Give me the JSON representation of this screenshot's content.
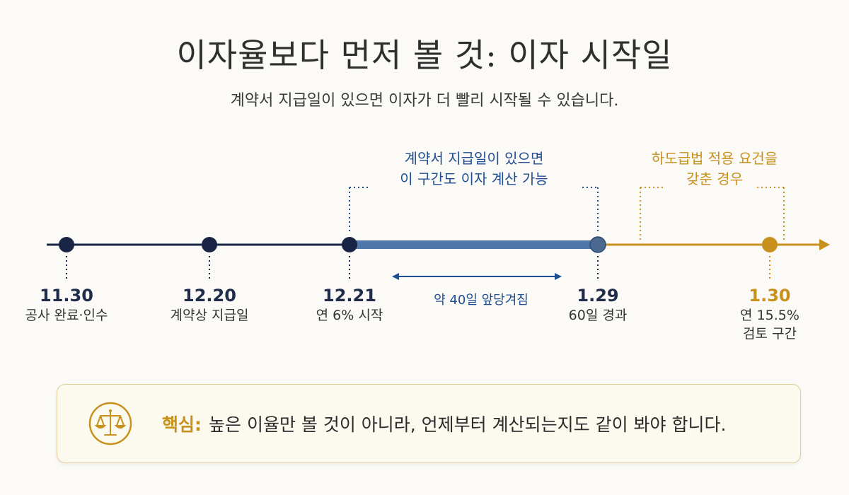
{
  "title": "이자율보다 먼저 볼 것: 이자 시작일",
  "subtitle": "계약서 지급일이 있으면 이자가 더 빨리 시작될 수 있습니다.",
  "milestones": [
    {
      "date": "11.30",
      "desc": "공사 완료·인수"
    },
    {
      "date": "12.20",
      "desc": "계약상 지급일"
    },
    {
      "date": "12.21",
      "desc": "연 6% 시작"
    },
    {
      "date": "1.29",
      "desc": "60일 경과"
    },
    {
      "date": "1.30",
      "desc_line1": "연 15.5%",
      "desc_line2": "검토 구간"
    }
  ],
  "callouts": {
    "contract_line1": "계약서 지급일이 있으면",
    "contract_line2": "이 구간도 이자 계산 가능",
    "subcontract_line1": "하도급법 적용 요건을",
    "subcontract_line2": "갖춘 경우"
  },
  "gap_label": "약 40일 앞당겨짐",
  "key": {
    "label": "핵심:",
    "text": "높은 이율만 볼 것이 아니라, 언제부터 계산되는지도 같이 봐야 합니다.",
    "icon": "scales-icon"
  },
  "colors": {
    "navy": "#1a2545",
    "blue": "#4f78aa",
    "gold": "#c8901c",
    "callout_blue": "#1f4f93"
  }
}
